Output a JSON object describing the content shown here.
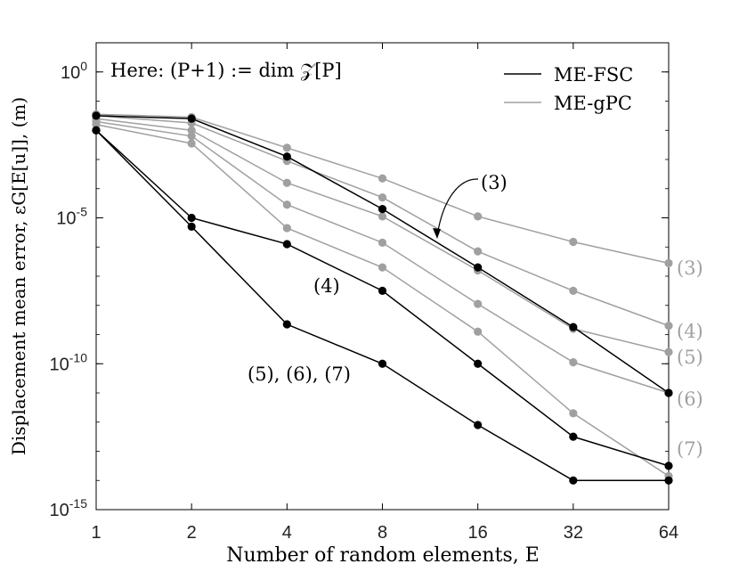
{
  "chart_data": {
    "type": "line",
    "title": "",
    "xlabel": "Number of random elements, E",
    "ylabel": "Displacement mean error, εG[E[u]], (m)",
    "x": [
      1,
      2,
      4,
      8,
      16,
      32,
      64
    ],
    "x_tick_labels": [
      "1",
      "2",
      "4",
      "8",
      "16",
      "32",
      "64"
    ],
    "x_scale": "log2",
    "y_scale": "log10",
    "ylim": [
      1e-15,
      10
    ],
    "y_ticks": [
      {
        "base": "10",
        "exp": "0"
      },
      {
        "base": "10",
        "exp": "-5"
      },
      {
        "base": "10",
        "exp": "-10"
      },
      {
        "base": "10",
        "exp": "-15"
      }
    ],
    "annotation_text": "Here: (P+1) := dim 𝒵[P]",
    "legend": {
      "position": "top-right",
      "entries": [
        {
          "label": "ME-FSC",
          "color": "#000000"
        },
        {
          "label": "ME-gPC",
          "color": "#a0a0a0"
        }
      ]
    },
    "series": [
      {
        "group": "ME-FSC",
        "order": "(3)",
        "color": "#000000",
        "values": [
          0.0316,
          0.0251,
          0.00126,
          2e-05,
          2e-07,
          1.8e-09,
          1e-11
        ]
      },
      {
        "group": "ME-FSC",
        "order": "(4)",
        "color": "#000000",
        "values": [
          0.01,
          1e-05,
          1.26e-06,
          3.16e-08,
          1e-10,
          3.16e-13,
          3.16e-14
        ]
      },
      {
        "group": "ME-FSC",
        "order": "(5),(6),(7)",
        "color": "#000000",
        "values": [
          0.01,
          5e-06,
          2.24e-09,
          1e-10,
          7.94e-13,
          1e-14,
          1e-14
        ]
      },
      {
        "group": "ME-gPC",
        "order": "(3)",
        "color": "#a0a0a0",
        "values": [
          0.0355,
          0.0282,
          0.00251,
          0.000224,
          1.12e-05,
          1.5e-06,
          2.8e-07
        ]
      },
      {
        "group": "ME-gPC",
        "order": "(4)",
        "color": "#a0a0a0",
        "values": [
          0.0316,
          0.0178,
          0.00089,
          5e-05,
          7.08e-07,
          3.16e-08,
          2e-09
        ]
      },
      {
        "group": "ME-gPC",
        "order": "(5)",
        "color": "#a0a0a0",
        "values": [
          0.0251,
          0.01,
          0.000158,
          1.12e-05,
          1.58e-07,
          1.58e-09,
          2.51e-10
        ]
      },
      {
        "group": "ME-gPC",
        "order": "(6)",
        "color": "#a0a0a0",
        "values": [
          0.02,
          0.00631,
          2.82e-05,
          1.41e-06,
          1.12e-08,
          1.12e-10,
          1e-11
        ]
      },
      {
        "group": "ME-gPC",
        "order": "(7)",
        "color": "#a0a0a0",
        "values": [
          0.0158,
          0.00355,
          4.47e-06,
          2e-07,
          1.26e-09,
          2e-12,
          1.41e-14
        ]
      }
    ],
    "labels": [
      {
        "text": "(3)",
        "color": "#000000",
        "kind": "fsc-3"
      },
      {
        "text": "(4)",
        "color": "#000000",
        "kind": "fsc-4"
      },
      {
        "text": "(5), (6), (7)",
        "color": "#000000",
        "kind": "fsc-567"
      },
      {
        "text": "(3)",
        "color": "#a0a0a0",
        "kind": "gpc-3"
      },
      {
        "text": "(4)",
        "color": "#a0a0a0",
        "kind": "gpc-4"
      },
      {
        "text": "(5)",
        "color": "#a0a0a0",
        "kind": "gpc-5"
      },
      {
        "text": "(6)",
        "color": "#a0a0a0",
        "kind": "gpc-6"
      },
      {
        "text": "(7)",
        "color": "#a0a0a0",
        "kind": "gpc-7"
      }
    ]
  }
}
